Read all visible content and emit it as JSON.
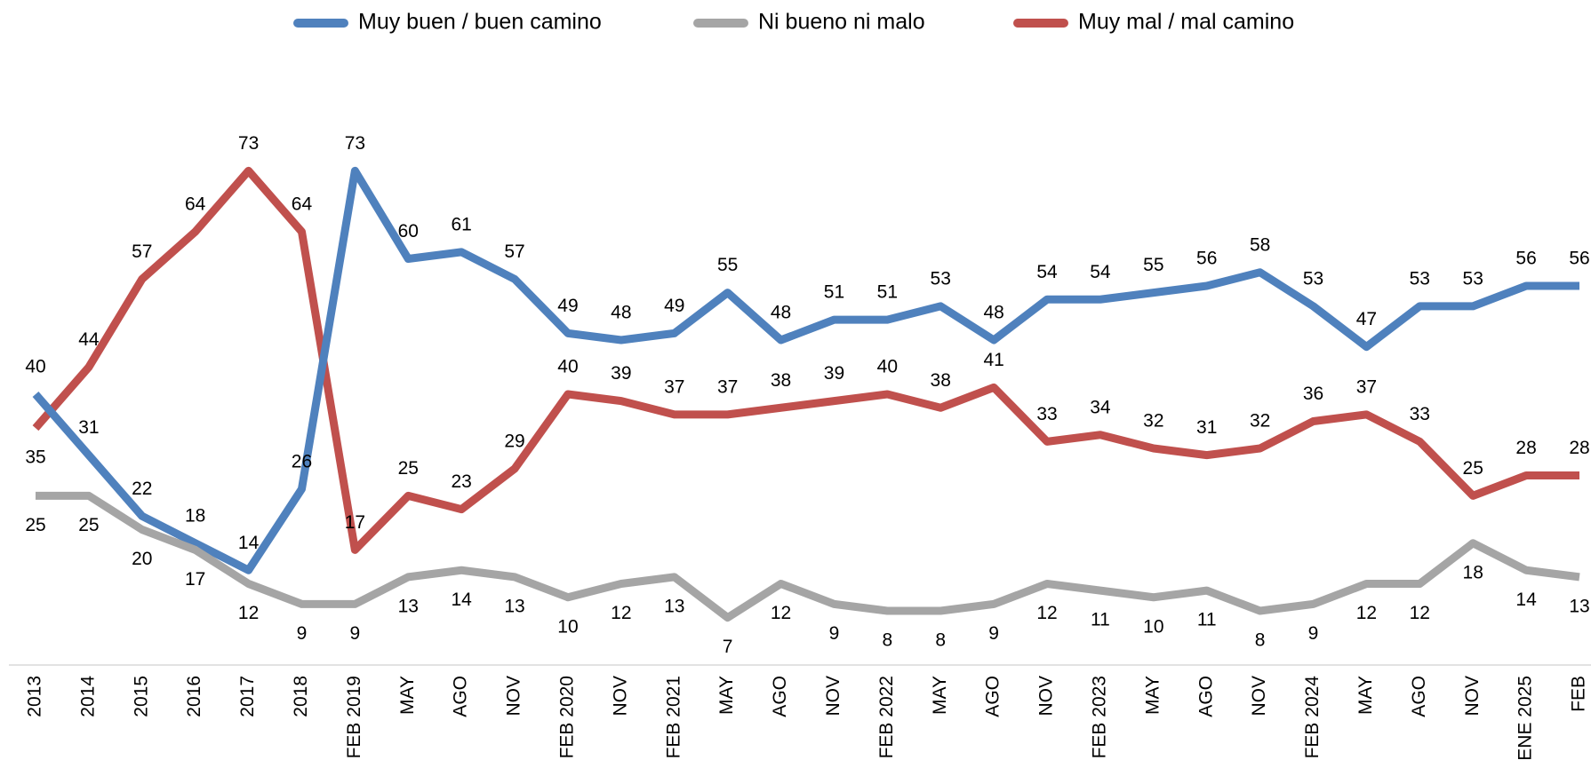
{
  "chart_data": {
    "type": "line",
    "categories": [
      "2013",
      "2014",
      "2015",
      "2016",
      "2017",
      "2018",
      "FEB 2019",
      "MAY",
      "AGO",
      "NOV",
      "FEB 2020",
      "NOV",
      "FEB 2021",
      "MAY",
      "AGO",
      "NOV",
      "FEB 2022",
      "MAY",
      "AGO",
      "NOV",
      "FEB 2023",
      "MAY",
      "AGO",
      "NOV",
      "FEB 2024",
      "MAY",
      "AGO",
      "NOV",
      "ENE 2025",
      "FEB"
    ],
    "series": [
      {
        "name": "Muy buen / buen camino",
        "color": "#4f81bd",
        "values": [
          40,
          31,
          22,
          18,
          14,
          26,
          73,
          60,
          61,
          57,
          49,
          48,
          49,
          55,
          48,
          51,
          51,
          53,
          48,
          54,
          54,
          55,
          56,
          58,
          53,
          47,
          53,
          53,
          56,
          56
        ]
      },
      {
        "name": "Ni bueno ni malo",
        "color": "#a5a5a5",
        "values": [
          25,
          25,
          20,
          17,
          12,
          9,
          9,
          13,
          14,
          13,
          10,
          12,
          13,
          7,
          12,
          9,
          8,
          8,
          9,
          12,
          11,
          10,
          11,
          8,
          9,
          12,
          12,
          18,
          14,
          13
        ]
      },
      {
        "name": "Muy mal / mal camino",
        "color": "#c0504d",
        "values": [
          35,
          44,
          57,
          64,
          73,
          64,
          17,
          25,
          23,
          29,
          40,
          39,
          37,
          37,
          38,
          39,
          40,
          38,
          41,
          33,
          34,
          32,
          31,
          32,
          36,
          37,
          33,
          25,
          28,
          28
        ]
      }
    ],
    "ylim": [
      0,
      80
    ],
    "legend": "top"
  }
}
